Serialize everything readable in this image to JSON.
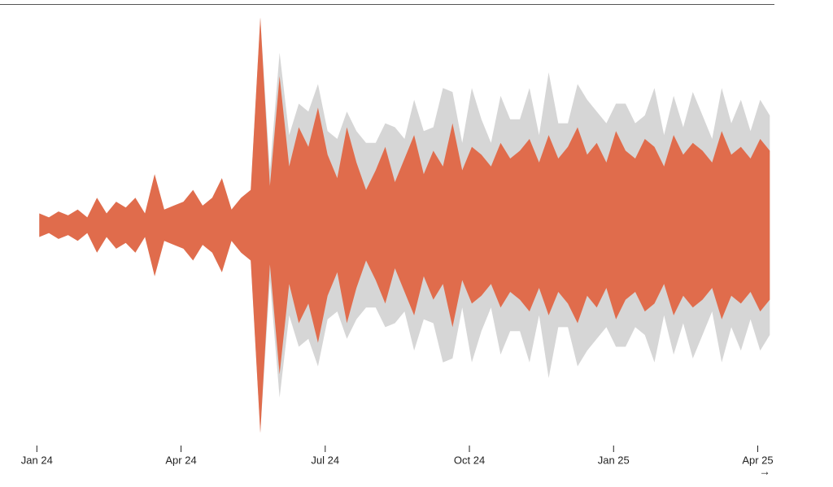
{
  "chart_data": {
    "type": "streamgraph",
    "x": [
      0.05,
      0.25,
      0.45,
      0.65,
      0.85,
      1.05,
      1.25,
      1.45,
      1.65,
      1.85,
      2.05,
      2.25,
      2.45,
      2.65,
      2.85,
      3.05,
      3.25,
      3.45,
      3.65,
      3.85,
      4.05,
      4.25,
      4.45,
      4.65,
      4.85,
      5.05,
      5.25,
      5.45,
      5.65,
      5.85,
      6.05,
      6.25,
      6.45,
      6.65,
      6.85,
      7.05,
      7.25,
      7.45,
      7.65,
      7.85,
      8.05,
      8.25,
      8.45,
      8.65,
      8.85,
      9.05,
      9.25,
      9.45,
      9.65,
      9.85,
      10.05,
      10.25,
      10.45,
      10.65,
      10.85,
      11.05,
      11.25,
      11.45,
      11.65,
      11.85,
      12.05,
      12.25,
      12.45,
      12.65,
      12.85,
      13.05,
      13.25,
      13.45,
      13.65,
      13.85,
      14.05,
      14.25,
      14.45,
      14.65,
      14.85,
      15.05,
      15.25
    ],
    "series": [
      {
        "color": "#e06c4c",
        "values": [
          30,
          20,
          35,
          25,
          40,
          20,
          70,
          30,
          60,
          45,
          70,
          30,
          130,
          40,
          50,
          60,
          90,
          50,
          70,
          120,
          40,
          70,
          90,
          530,
          100,
          380,
          150,
          250,
          200,
          300,
          180,
          120,
          250,
          160,
          90,
          140,
          200,
          110,
          170,
          230,
          130,
          190,
          150,
          260,
          140,
          200,
          180,
          150,
          210,
          170,
          190,
          220,
          160,
          230,
          170,
          200,
          250,
          180,
          210,
          160,
          240,
          190,
          170,
          220,
          200,
          150,
          230,
          180,
          210,
          190,
          160,
          240,
          180,
          200,
          170,
          220,
          190
        ]
      },
      {
        "color": "#d6d6d6",
        "values": [
          0,
          0,
          0,
          0,
          0,
          0,
          0,
          0,
          0,
          0,
          0,
          0,
          0,
          0,
          0,
          0,
          0,
          0,
          0,
          0,
          0,
          0,
          0,
          0,
          40,
          60,
          80,
          60,
          90,
          60,
          60,
          100,
          40,
          80,
          120,
          70,
          60,
          140,
          50,
          90,
          110,
          60,
          200,
          80,
          70,
          150,
          90,
          60,
          120,
          100,
          80,
          130,
          70,
          160,
          90,
          60,
          110,
          140,
          80,
          100,
          70,
          120,
          90,
          60,
          150,
          80,
          100,
          70,
          130,
          90,
          60,
          110,
          80,
          120,
          70,
          100,
          90
        ]
      }
    ],
    "xlim": [
      -0.1,
      16.2
    ],
    "xticks": [
      {
        "value": 0,
        "label": "Jan 24"
      },
      {
        "value": 3,
        "label": "Apr 24"
      },
      {
        "value": 6,
        "label": "Jul 24"
      },
      {
        "value": 9,
        "label": "Oct 24"
      },
      {
        "value": 12,
        "label": "Jan 25"
      },
      {
        "value": 15,
        "label": "Apr 25"
      }
    ],
    "ylim": [
      0,
      560
    ]
  }
}
